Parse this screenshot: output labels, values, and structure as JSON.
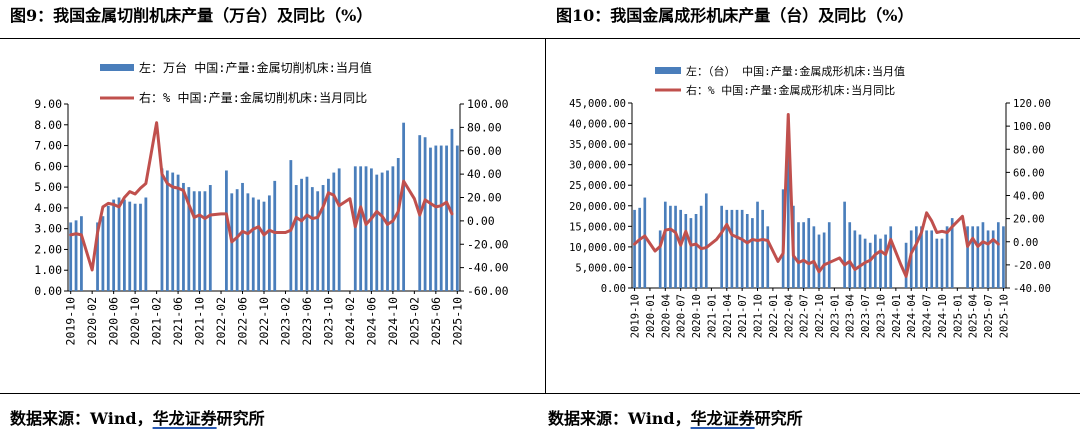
{
  "captions": {
    "left_title": "图9：我国金属切削机床产量（万台）及同比（%）",
    "right_title": "图10：我国金属成形机床产量（台）及同比（%）",
    "left_source_prefix": "数据来源：Wind，",
    "left_source_brand": "华龙证券",
    "left_source_suffix": "研究所",
    "right_source_prefix": "数据来源：Wind，",
    "right_source_brand": "华龙证券",
    "right_source_suffix": "研究所"
  },
  "colors": {
    "bar": "#4a7ebb",
    "line": "#c0504d"
  },
  "chart_data": [
    {
      "type": "bar",
      "combo": "bar+line",
      "legend_bar": "左：万台 中国:产量:金属切削机床:当月值",
      "legend_line": "右：% 中国:产量:金属切削机床:当月同比",
      "y_left_ticks": [
        "9.00",
        "8.00",
        "7.00",
        "6.00",
        "5.00",
        "4.00",
        "3.00",
        "2.00",
        "1.00",
        "0.00"
      ],
      "y_right_ticks": [
        "100.00",
        "80.00",
        "60.00",
        "40.00",
        "20.00",
        "0.00",
        "-20.00",
        "-40.00",
        "-60.00"
      ],
      "ylim_left": [
        0,
        9
      ],
      "ylim_right": [
        -60,
        100
      ],
      "x_tick_labels": [
        "2019-10",
        "2020-02",
        "2020-06",
        "2020-10",
        "2021-02",
        "2021-06",
        "2021-10",
        "2022-02",
        "2022-06",
        "2022-10",
        "2023-02",
        "2023-06",
        "2023-10",
        "2024-02",
        "2024-06",
        "2024-10",
        "2025-02",
        "2025-06",
        "2025-10"
      ],
      "months": [
        "2019-10",
        "2019-11",
        "2019-12",
        "2020-01",
        "2020-02",
        "2020-03",
        "2020-04",
        "2020-05",
        "2020-06",
        "2020-07",
        "2020-08",
        "2020-09",
        "2020-10",
        "2020-11",
        "2020-12",
        "2021-01",
        "2021-02",
        "2021-03",
        "2021-04",
        "2021-05",
        "2021-06",
        "2021-07",
        "2021-08",
        "2021-09",
        "2021-10",
        "2021-11",
        "2021-12",
        "2022-01",
        "2022-02",
        "2022-03",
        "2022-04",
        "2022-05",
        "2022-06",
        "2022-07",
        "2022-08",
        "2022-09",
        "2022-10",
        "2022-11",
        "2022-12",
        "2023-01",
        "2023-02",
        "2023-03",
        "2023-04",
        "2023-05",
        "2023-06",
        "2023-07",
        "2023-08",
        "2023-09",
        "2023-10",
        "2023-11",
        "2023-12",
        "2024-01",
        "2024-02",
        "2024-03",
        "2024-04",
        "2024-05",
        "2024-06",
        "2024-07",
        "2024-08",
        "2024-09",
        "2024-10",
        "2024-11",
        "2024-12",
        "2025-01",
        "2025-02",
        "2025-03",
        "2025-04",
        "2025-05",
        "2025-06",
        "2025-07",
        "2025-08",
        "2025-09",
        "2025-10"
      ],
      "series": [
        {
          "name": "左：万台 中国:产量:金属切削机床:当月值",
          "axis": "left",
          "values": [
            3.3,
            3.4,
            3.6,
            null,
            null,
            3.3,
            3.6,
            4.1,
            4.4,
            4.5,
            4.4,
            4.3,
            4.2,
            4.2,
            4.5,
            null,
            null,
            5.9,
            5.8,
            5.7,
            5.6,
            5.2,
            5.0,
            4.8,
            4.8,
            4.8,
            5.1,
            null,
            null,
            5.8,
            4.7,
            4.9,
            5.2,
            4.7,
            4.5,
            4.4,
            4.3,
            4.6,
            5.3,
            null,
            null,
            6.3,
            5.1,
            5.4,
            5.5,
            5.0,
            4.8,
            5.1,
            5.4,
            5.7,
            5.9,
            null,
            null,
            6.0,
            6.0,
            6.0,
            5.9,
            5.6,
            5.7,
            5.8,
            6.0,
            6.4,
            8.1,
            null,
            null,
            7.5,
            7.4,
            6.9,
            7.0,
            7.0,
            7.0,
            7.8,
            7.0
          ]
        },
        {
          "name": "右：% 中国:产量:金属切削机床:当月同比",
          "axis": "right",
          "values": [
            -12,
            -11,
            -12,
            null,
            -42,
            -10,
            12,
            15,
            14,
            12,
            20,
            25,
            23,
            28,
            32,
            null,
            84,
            40,
            32,
            29,
            28,
            26,
            14,
            3,
            5,
            2,
            5,
            null,
            6,
            6,
            -18,
            -14,
            -9,
            -11,
            -7,
            -5,
            -12,
            -8,
            -10,
            null,
            -10,
            -8,
            3,
            0,
            5,
            2,
            3,
            12,
            24,
            22,
            13,
            null,
            19,
            -5,
            12,
            -3,
            2,
            8,
            4,
            -3,
            0,
            8,
            34,
            null,
            19,
            5,
            18,
            15,
            12,
            13,
            16,
            6
          ]
        }
      ]
    },
    {
      "type": "bar",
      "combo": "bar+line",
      "legend_bar": "左：（台） 中国:产量:金属成形机床:当月值",
      "legend_line": "右：% 中国:产量:金属成形机床:当月同比",
      "y_left_ticks": [
        "45,000.00",
        "40,000.00",
        "35,000.00",
        "30,000.00",
        "25,000.00",
        "20,000.00",
        "15,000.00",
        "10,000.00",
        "5,000.00",
        "0.00"
      ],
      "y_right_ticks": [
        "120.00",
        "100.00",
        "80.00",
        "60.00",
        "40.00",
        "20.00",
        "0.00",
        "-20.00",
        "-40.00"
      ],
      "ylim_left": [
        0,
        45000
      ],
      "ylim_right": [
        -40,
        120
      ],
      "x_tick_labels": [
        "2019-10",
        "2020-01",
        "2020-04",
        "2020-07",
        "2020-10",
        "2021-01",
        "2021-04",
        "2021-07",
        "2021-10",
        "2022-01",
        "2022-04",
        "2022-07",
        "2022-10",
        "2023-01",
        "2023-04",
        "2023-07",
        "2023-10",
        "2024-01",
        "2024-04",
        "2024-07",
        "2024-10",
        "2025-01",
        "2025-04",
        "2025-07",
        "2025-10"
      ],
      "months": [
        "2019-10",
        "2019-11",
        "2019-12",
        "2020-01",
        "2020-02",
        "2020-03",
        "2020-04",
        "2020-05",
        "2020-06",
        "2020-07",
        "2020-08",
        "2020-09",
        "2020-10",
        "2020-11",
        "2020-12",
        "2021-01",
        "2021-02",
        "2021-03",
        "2021-04",
        "2021-05",
        "2021-06",
        "2021-07",
        "2021-08",
        "2021-09",
        "2021-10",
        "2021-11",
        "2021-12",
        "2022-01",
        "2022-02",
        "2022-03",
        "2022-04",
        "2022-05",
        "2022-06",
        "2022-07",
        "2022-08",
        "2022-09",
        "2022-10",
        "2022-11",
        "2022-12",
        "2023-01",
        "2023-02",
        "2023-03",
        "2023-04",
        "2023-05",
        "2023-06",
        "2023-07",
        "2023-08",
        "2023-09",
        "2023-10",
        "2023-11",
        "2023-12",
        "2024-01",
        "2024-02",
        "2024-03",
        "2024-04",
        "2024-05",
        "2024-06",
        "2024-07",
        "2024-08",
        "2024-09",
        "2024-10",
        "2024-11",
        "2024-12",
        "2025-01",
        "2025-02",
        "2025-03",
        "2025-04",
        "2025-05",
        "2025-06",
        "2025-07",
        "2025-08",
        "2025-09",
        "2025-10"
      ],
      "series": [
        {
          "name": "左：（台） 中国:产量:金属成形机床:当月值",
          "axis": "left",
          "values": [
            19000,
            19500,
            22000,
            null,
            null,
            14000,
            21000,
            20000,
            20000,
            19000,
            18000,
            17000,
            18000,
            20000,
            23000,
            null,
            null,
            20000,
            19000,
            19000,
            19000,
            19000,
            18000,
            17000,
            21000,
            19000,
            15000,
            null,
            null,
            24000,
            38000,
            20000,
            16000,
            16000,
            17000,
            15000,
            13000,
            13500,
            16000,
            null,
            null,
            21000,
            16000,
            14000,
            13000,
            12000,
            11000,
            13000,
            12000,
            13000,
            15000,
            null,
            null,
            11000,
            14000,
            15000,
            15000,
            14000,
            14000,
            12000,
            12000,
            15000,
            17000,
            null,
            null,
            15000,
            15000,
            15000,
            16000,
            14000,
            14000,
            16000,
            15000
          ]
        },
        {
          "name": "右：% 中国:产量:金属成形机床:当月同比",
          "axis": "right",
          "values": [
            -2,
            2,
            5,
            null,
            -8,
            -4,
            10,
            11,
            8,
            -3,
            9,
            -3,
            -2,
            -6,
            -5,
            null,
            2,
            8,
            15,
            6,
            4,
            2,
            -1,
            2,
            1,
            2,
            1,
            null,
            -17,
            -10,
            110,
            -12,
            -18,
            -16,
            -19,
            -17,
            -26,
            -20,
            -18,
            null,
            -14,
            -20,
            -17,
            -24,
            -21,
            -18,
            -16,
            -11,
            -8,
            -11,
            2,
            null,
            -20,
            -30,
            -10,
            -2,
            8,
            25,
            18,
            8,
            9,
            8,
            13,
            null,
            22,
            -4,
            3,
            -4,
            0,
            -2,
            2,
            -2
          ]
        }
      ]
    }
  ]
}
